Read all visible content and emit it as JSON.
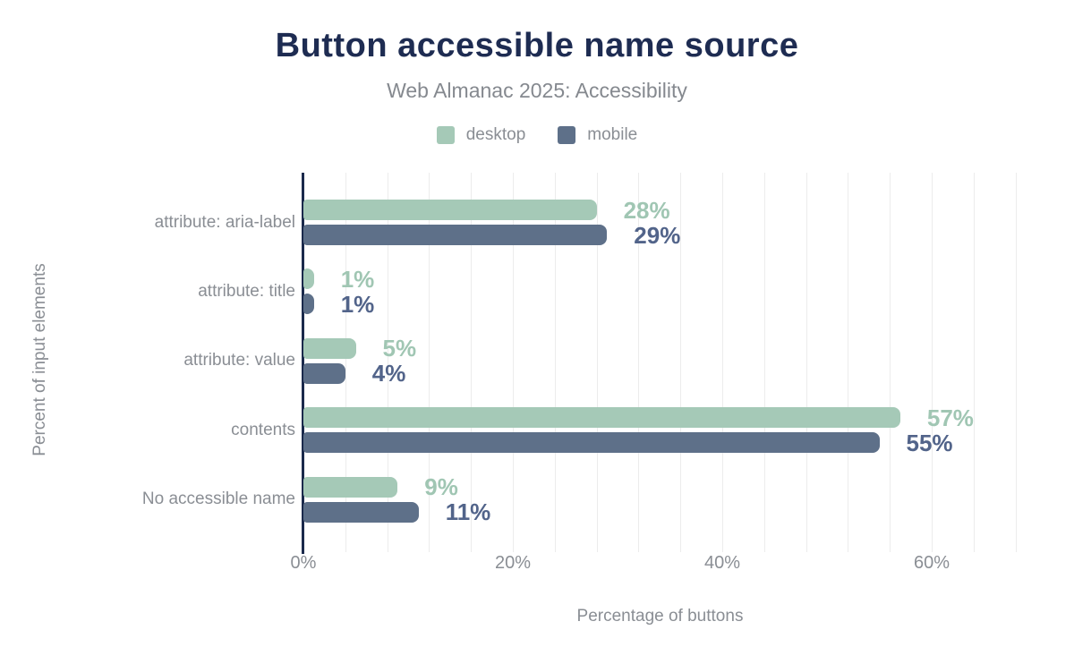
{
  "header": {
    "title": "Button accessible name source",
    "subtitle": "Web Almanac 2025: Accessibility"
  },
  "chart_data": {
    "type": "bar",
    "orientation": "horizontal",
    "title": "Button accessible name source",
    "subtitle": "Web Almanac 2025: Accessibility",
    "categories": [
      "attribute: aria-label",
      "attribute: title",
      "attribute: value",
      "contents",
      "No accessible name"
    ],
    "series": [
      {
        "name": "desktop",
        "color": "#a5c9b7",
        "label_color": "#a0c6b3",
        "values": [
          28,
          1,
          5,
          57,
          9
        ],
        "labels": [
          "28%",
          "1%",
          "5%",
          "57%",
          "9%"
        ]
      },
      {
        "name": "mobile",
        "color": "#5e7089",
        "label_color": "#52648a",
        "values": [
          29,
          1,
          4,
          55,
          11
        ],
        "labels": [
          "29%",
          "1%",
          "4%",
          "55%",
          "11%"
        ]
      }
    ],
    "xlabel": "Percentage of buttons",
    "ylabel": "Percent of input elements",
    "x_ticks": [
      {
        "label": "0%",
        "value": 0
      },
      {
        "label": "20%",
        "value": 20
      },
      {
        "label": "40%",
        "value": 40
      },
      {
        "label": "60%",
        "value": 60
      }
    ],
    "xlim": [
      0,
      68
    ],
    "grid": {
      "minor_interval_percent": 4,
      "color": "#ececec"
    },
    "legend_position": "top"
  },
  "style": {
    "title_color": "#1e2c52",
    "subtitle_color": "#85898f",
    "text_color": "#8a8e94",
    "axis_line_color": "#1b2a4c",
    "background": "#ffffff"
  }
}
